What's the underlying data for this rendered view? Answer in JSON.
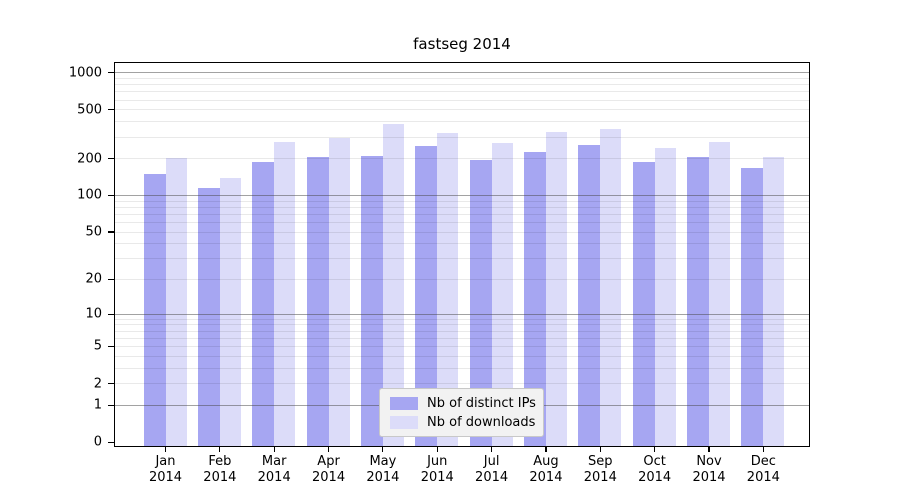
{
  "chart_data": {
    "type": "bar",
    "title": "fastseg 2014",
    "months": [
      "Jan",
      "Feb",
      "Mar",
      "Apr",
      "May",
      "Jun",
      "Jul",
      "Aug",
      "Sep",
      "Oct",
      "Nov",
      "Dec"
    ],
    "year": "2014",
    "series": [
      {
        "name": "Nb of distinct IPs",
        "color": "#a6a6f2",
        "values": [
          150,
          115,
          186,
          206,
          207,
          251,
          194,
          224,
          257,
          187,
          206,
          167
        ]
      },
      {
        "name": "Nb of downloads",
        "color": "#dcdcf9",
        "values": [
          201,
          139,
          274,
          295,
          377,
          321,
          268,
          329,
          346,
          242,
          273,
          204
        ]
      }
    ],
    "y_ticks": [
      0,
      1,
      2,
      5,
      10,
      20,
      50,
      100,
      200,
      500,
      1000
    ],
    "y_scale": "log1p",
    "ylim": [
      0,
      1200
    ],
    "grid": "both",
    "gridlines_over_bars": true,
    "legend_position": "bottom-center",
    "background": "#ffffff",
    "axis_color": "#000000"
  }
}
